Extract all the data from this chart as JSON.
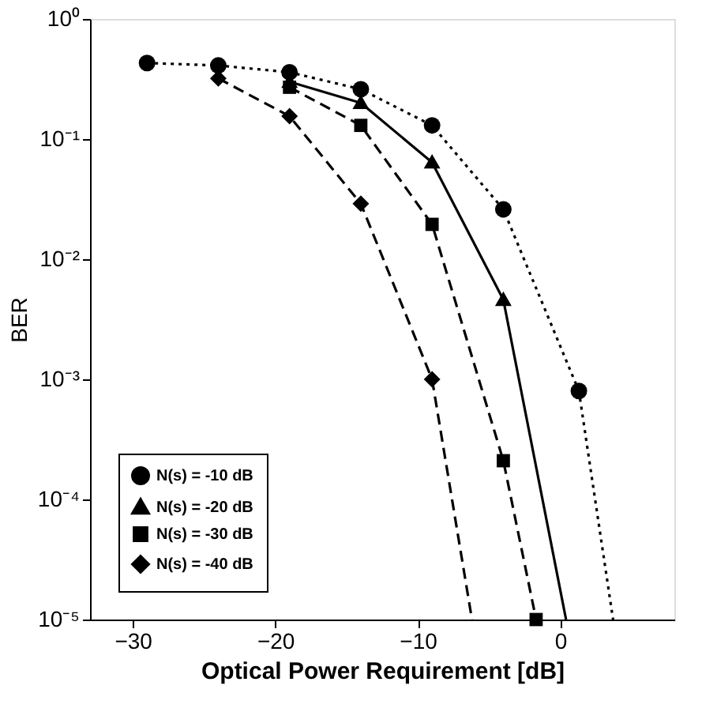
{
  "chart_data": {
    "type": "line",
    "xlabel": "Optical Power Requirement [dB]",
    "ylabel": "BER",
    "log": "y",
    "xlim": [
      -33,
      8
    ],
    "xticks": [
      -30,
      -20,
      -10,
      0
    ],
    "ylim": [
      1e-05,
      1
    ],
    "yticks": [
      {
        "value": 1,
        "label": "10⁰"
      },
      {
        "value": 0.1,
        "label": "10⁻¹"
      },
      {
        "value": 0.01,
        "label": "10⁻²"
      },
      {
        "value": 0.001,
        "label": "10⁻³"
      },
      {
        "value": 0.0001,
        "label": "10⁻⁴"
      },
      {
        "value": 1e-05,
        "label": "10⁻⁵"
      }
    ],
    "grid": false,
    "legend": "bottom left",
    "series": [
      {
        "name": "N(s) = -10 dB",
        "color": "#000000",
        "marker": "circle",
        "line_style": "dotted",
        "x": [
          -29,
          -24,
          -19,
          -14,
          -9,
          -4,
          1.3
        ],
        "values": [
          0.43,
          0.41,
          0.36,
          0.26,
          0.13,
          0.026,
          0.0008
        ]
      },
      {
        "name": "N(s) = -20 dB",
        "color": "#000000",
        "marker": "triangle",
        "line_style": "solid",
        "x": [
          -19,
          -14,
          -9,
          -4
        ],
        "values": [
          0.3,
          0.2,
          0.064,
          0.0046
        ]
      },
      {
        "name": "N(s) = -30 dB",
        "color": "#000000",
        "marker": "square",
        "line_style": "dashed",
        "x": [
          -19,
          -14,
          -9,
          -4,
          -1.7
        ],
        "values": [
          0.27,
          0.13,
          0.0195,
          0.00021,
          1e-05
        ]
      },
      {
        "name": "N(s) = -40 dB",
        "color": "#000000",
        "marker": "diamond",
        "line_style": "dashed",
        "x": [
          -24,
          -19,
          -14,
          -9
        ],
        "values": [
          0.32,
          0.155,
          0.029,
          0.001
        ]
      },
      {
        "color": "#000000",
        "marker": "none",
        "line_style": "dotted",
        "x": [
          1.3,
          3.7
        ],
        "values": [
          0.0008,
          1e-05
        ]
      },
      {
        "color": "#000000",
        "marker": "none",
        "line_style": "solid",
        "x": [
          -4,
          0.4
        ],
        "values": [
          0.0046,
          1e-05
        ]
      },
      {
        "color": "#000000",
        "marker": "none",
        "line_style": "dashed",
        "x": [
          -9,
          -6.2
        ],
        "values": [
          0.001,
          1e-05
        ]
      }
    ]
  }
}
